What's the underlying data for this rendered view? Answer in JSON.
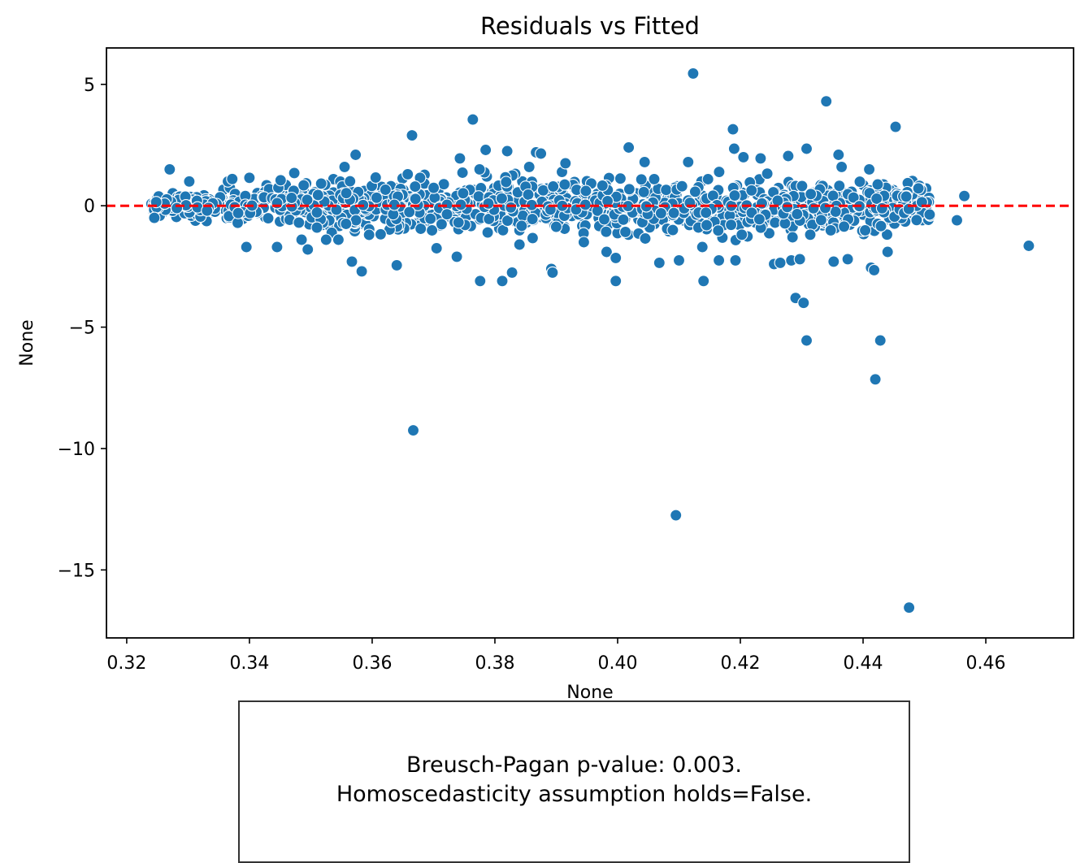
{
  "chart_data": {
    "type": "scatter",
    "title": "Residuals vs Fitted",
    "xlabel": "None",
    "ylabel": "None",
    "xlim": [
      0.3167,
      0.4743
    ],
    "ylim": [
      -17.8,
      6.5
    ],
    "xticks": [
      0.32,
      0.34,
      0.36,
      0.38,
      0.4,
      0.42,
      0.44,
      0.46
    ],
    "xtick_labels": [
      "0.32",
      "0.34",
      "0.36",
      "0.38",
      "0.40",
      "0.42",
      "0.44",
      "0.46"
    ],
    "yticks": [
      5,
      0,
      -5,
      -10,
      -15
    ],
    "ytick_labels": [
      "5",
      "0",
      "−5",
      "−10",
      "−15"
    ],
    "reference_line": {
      "y": 0,
      "style": "dashed",
      "color": "#ff0000"
    },
    "point_color": "#1f77b4",
    "grid": false,
    "points": [
      [
        0.3245,
        -0.5
      ],
      [
        0.3248,
        0.15
      ],
      [
        0.327,
        1.5
      ],
      [
        0.3302,
        1.0
      ],
      [
        0.3331,
        -0.2
      ],
      [
        0.3365,
        1.0
      ],
      [
        0.3372,
        1.1
      ],
      [
        0.3395,
        -1.7
      ],
      [
        0.34,
        1.15
      ],
      [
        0.3445,
        -1.7
      ],
      [
        0.3473,
        1.35
      ],
      [
        0.3485,
        -1.4
      ],
      [
        0.3495,
        -1.8
      ],
      [
        0.351,
        -0.9
      ],
      [
        0.3525,
        -1.4
      ],
      [
        0.3545,
        -1.4
      ],
      [
        0.3555,
        1.6
      ],
      [
        0.3567,
        -2.3
      ],
      [
        0.3573,
        2.1
      ],
      [
        0.3583,
        -2.7
      ],
      [
        0.3595,
        -1.2
      ],
      [
        0.364,
        -2.45
      ],
      [
        0.3658,
        1.3
      ],
      [
        0.3665,
        2.9
      ],
      [
        0.3667,
        -9.25
      ],
      [
        0.3705,
        -1.75
      ],
      [
        0.3738,
        -2.1
      ],
      [
        0.3743,
        1.95
      ],
      [
        0.3764,
        3.55
      ],
      [
        0.3776,
        -3.1
      ],
      [
        0.3785,
        2.3
      ],
      [
        0.3812,
        -3.1
      ],
      [
        0.382,
        2.25
      ],
      [
        0.3828,
        -2.75
      ],
      [
        0.384,
        -1.6
      ],
      [
        0.3856,
        1.6
      ],
      [
        0.3867,
        2.2
      ],
      [
        0.3875,
        2.15
      ],
      [
        0.3892,
        -2.6
      ],
      [
        0.3894,
        -2.75
      ],
      [
        0.3915,
        1.75
      ],
      [
        0.3945,
        -1.5
      ],
      [
        0.3982,
        -1.9
      ],
      [
        0.3997,
        -2.15
      ],
      [
        0.3997,
        -3.1
      ],
      [
        0.4018,
        2.4
      ],
      [
        0.4045,
        -1.35
      ],
      [
        0.4044,
        1.8
      ],
      [
        0.4068,
        -2.35
      ],
      [
        0.409,
        -1.0
      ],
      [
        0.4095,
        -12.75
      ],
      [
        0.41,
        -2.25
      ],
      [
        0.4115,
        1.8
      ],
      [
        0.4123,
        5.45
      ],
      [
        0.4138,
        -1.7
      ],
      [
        0.414,
        -3.1
      ],
      [
        0.4145,
        -0.8
      ],
      [
        0.4165,
        -2.25
      ],
      [
        0.419,
        2.35
      ],
      [
        0.4188,
        3.15
      ],
      [
        0.4192,
        -2.25
      ],
      [
        0.4205,
        2.0
      ],
      [
        0.4233,
        1.95
      ],
      [
        0.4255,
        -2.4
      ],
      [
        0.4265,
        -2.35
      ],
      [
        0.4278,
        2.05
      ],
      [
        0.4283,
        -2.25
      ],
      [
        0.4285,
        -1.3
      ],
      [
        0.429,
        -3.8
      ],
      [
        0.4297,
        -2.2
      ],
      [
        0.4303,
        -4.0
      ],
      [
        0.4308,
        -5.55
      ],
      [
        0.4308,
        2.35
      ],
      [
        0.434,
        4.3
      ],
      [
        0.4352,
        -2.3
      ],
      [
        0.436,
        2.1
      ],
      [
        0.4375,
        -2.2
      ],
      [
        0.4413,
        -2.55
      ],
      [
        0.4418,
        -2.65
      ],
      [
        0.442,
        -7.15
      ],
      [
        0.4428,
        -5.55
      ],
      [
        0.444,
        -1.9
      ],
      [
        0.4453,
        3.25
      ],
      [
        0.4475,
        -16.55
      ],
      [
        0.4553,
        -0.6
      ],
      [
        0.4565,
        0.4
      ],
      [
        0.467,
        -1.65
      ],
      [
        0.4365,
        1.6
      ],
      [
        0.441,
        1.5
      ],
      [
        0.3775,
        1.5
      ]
    ],
    "dense_band": {
      "x_range": [
        0.324,
        0.451
      ],
      "core_spread": [
        [
          0.324,
          0.35
        ],
        [
          0.335,
          0.8
        ],
        [
          0.345,
          1.0
        ],
        [
          0.36,
          1.1
        ],
        [
          0.375,
          1.3
        ],
        [
          0.39,
          1.35
        ],
        [
          0.405,
          1.25
        ],
        [
          0.42,
          1.35
        ],
        [
          0.435,
          1.3
        ],
        [
          0.451,
          1.0
        ]
      ],
      "count": 1300
    }
  },
  "note": {
    "line1": "Breusch-Pagan p-value: 0.003.",
    "line2": "Homoscedasticity assumption holds=False."
  }
}
